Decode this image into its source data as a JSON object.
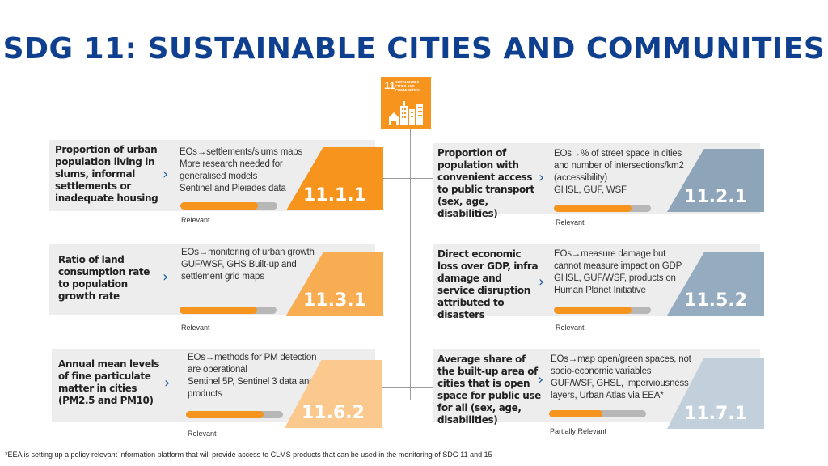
{
  "title": "SDG 11: SUSTAINABLE CITIES AND COMMUNITIES",
  "icon": {
    "number": "11",
    "caption": "SUSTAINABLE CITIES AND COMMUNITIES",
    "name": "city-buildings-icon"
  },
  "colors": {
    "title": "#0f3f8f",
    "orange_full": "#f7941d",
    "orange_mid": "#f9ad52",
    "orange_light": "#fbc98e",
    "blue_full": "#8ea4b8",
    "blue_mid": "#95abc0",
    "blue_light": "#c2d0dc",
    "bar_track": "#b7b7b7",
    "card_bg": "#ededed"
  },
  "indicators": [
    {
      "code": "11.1.1",
      "label": "Proportion of urban population living in slums, informal settlements or inadequate housing",
      "description": "EOs→settlements/slums maps\nMore research needed for generalised models\nSentinel and Pleiades data",
      "status": "Relevant",
      "level": 0.8
    },
    {
      "code": "11.2.1",
      "label": "Proportion of population with convenient access to public transport (sex, age, disabilities)",
      "description": "EOs→% of street space in cities and number of intersections/km2 (accessibility)\nGHSL, GUF, WSF",
      "status": "Relevant",
      "level": 0.8
    },
    {
      "code": "11.3.1",
      "label": "Ratio of land consumption rate to population growth rate",
      "description": "EOs→monitoring of urban growth\nGUF/WSF, GHS Built-up and settlement grid maps",
      "status": "Relevant",
      "level": 0.8
    },
    {
      "code": "11.5.2",
      "label": "Direct economic loss over GDP, infra damage and service disruption attributed to disasters",
      "description": "EOs→measure damage but cannot measure impact on GDP\nGHSL, GUF/WSF, products on Human Planet Initiative",
      "status": "Relevant",
      "level": 0.8
    },
    {
      "code": "11.6.2",
      "label": "Annual mean levels of fine particulate matter in cities (PM2.5 and PM10)",
      "description": "EOs→methods for PM detection are operational\nSentinel 5P, Sentinel 3 data and products",
      "status": "Relevant",
      "level": 0.8
    },
    {
      "code": "11.7.1",
      "label": "Average share of the built-up area of cities that is open space for public use for all (sex, age, disabilities)",
      "description": "EOs→map open/green spaces, not socio-economic variables\nGUF/WSF, GHSL, Imperviousness layers, Urban Atlas via EEA*",
      "status": "Partially Relevant",
      "level": 0.55
    }
  ],
  "footnote": "*EEA is setting up a policy relevant information platform that will provide access to CLMS products that can be used in the monitoring of SDG 11 and 15"
}
